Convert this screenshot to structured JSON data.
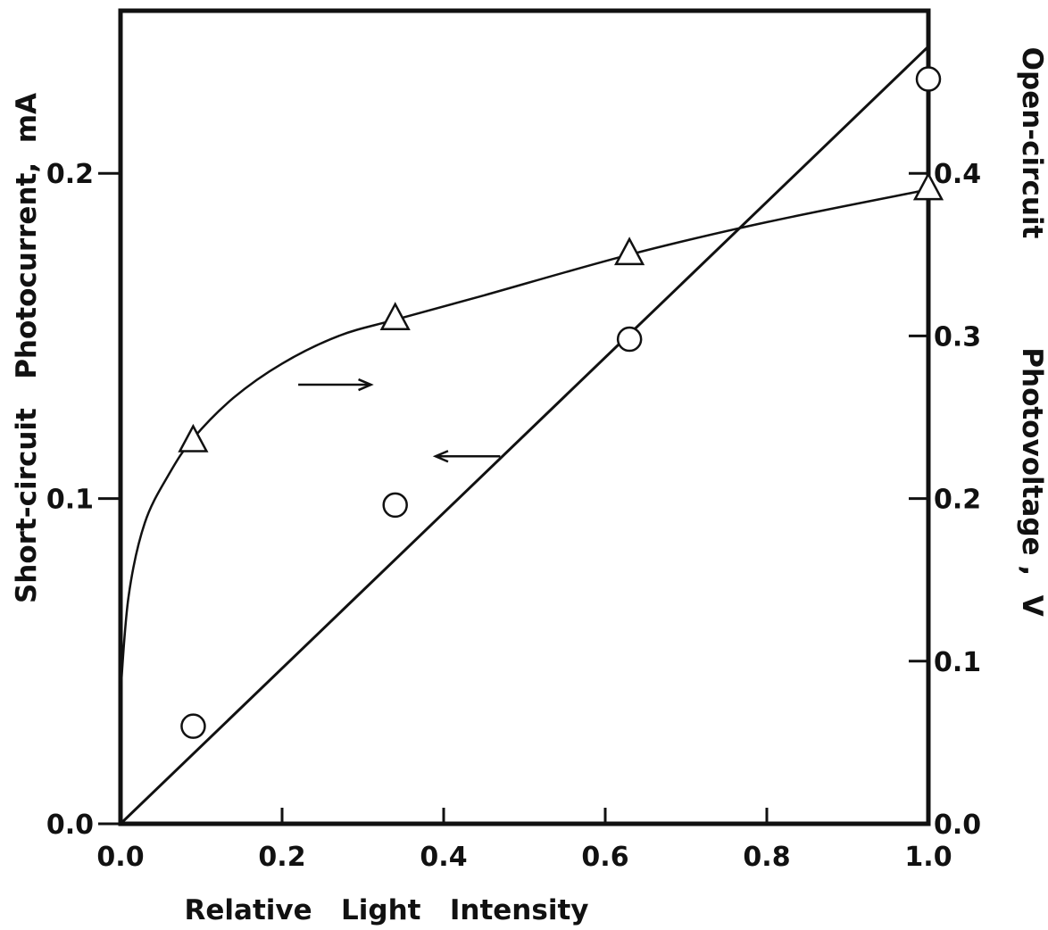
{
  "chart_data": {
    "type": "scatter",
    "title": "",
    "xlabel": "Relative   Light   Intensity",
    "ylabel_left": "Short-circuit   Photocurrent,  mA",
    "ylabel_right_upper": "Open-circuit",
    "ylabel_right_lower": "Photovoltage ,  V",
    "xlim": [
      0.0,
      1.0
    ],
    "ylim_left": [
      0.0,
      0.25
    ],
    "ylim_right": [
      0.0,
      0.5
    ],
    "x_ticks": [
      "0.0",
      "0.2",
      "0.4",
      "0.6",
      "0.8",
      "1.0"
    ],
    "y_left_ticks": [
      "0.0",
      "0.1",
      "0.2"
    ],
    "y_right_ticks": [
      "0.0",
      "0.1",
      "0.2",
      "0.3",
      "0.4"
    ],
    "grid": false,
    "legend": "none",
    "series": [
      {
        "axis": "left",
        "marker": "circle",
        "x": [
          0.09,
          0.34,
          0.63,
          1.0
        ],
        "y": [
          0.03,
          0.098,
          0.149,
          0.229
        ],
        "fit": {
          "type": "line",
          "x": [
            0.0,
            1.0
          ],
          "y": [
            0.0,
            0.239
          ]
        }
      },
      {
        "axis": "right",
        "marker": "triangle",
        "x": [
          0.09,
          0.34,
          0.63,
          1.0
        ],
        "y": [
          0.235,
          0.31,
          0.35,
          0.39
        ],
        "fit": {
          "type": "curve",
          "x": [
            0.0,
            0.01,
            0.03,
            0.06,
            0.09,
            0.14,
            0.2,
            0.27,
            0.34,
            0.45,
            0.63,
            0.8,
            1.0
          ],
          "y": [
            0.08,
            0.14,
            0.185,
            0.215,
            0.237,
            0.262,
            0.283,
            0.3,
            0.31,
            0.325,
            0.35,
            0.37,
            0.39
          ]
        }
      }
    ],
    "annotations": [
      {
        "type": "arrow",
        "direction": "right",
        "points_to": "right-axis",
        "x_from": 0.22,
        "x_to": 0.31,
        "y_left": 0.135
      },
      {
        "type": "arrow",
        "direction": "left",
        "points_to": "left-axis",
        "x_from": 0.47,
        "x_to": 0.39,
        "y_left": 0.113
      }
    ]
  }
}
